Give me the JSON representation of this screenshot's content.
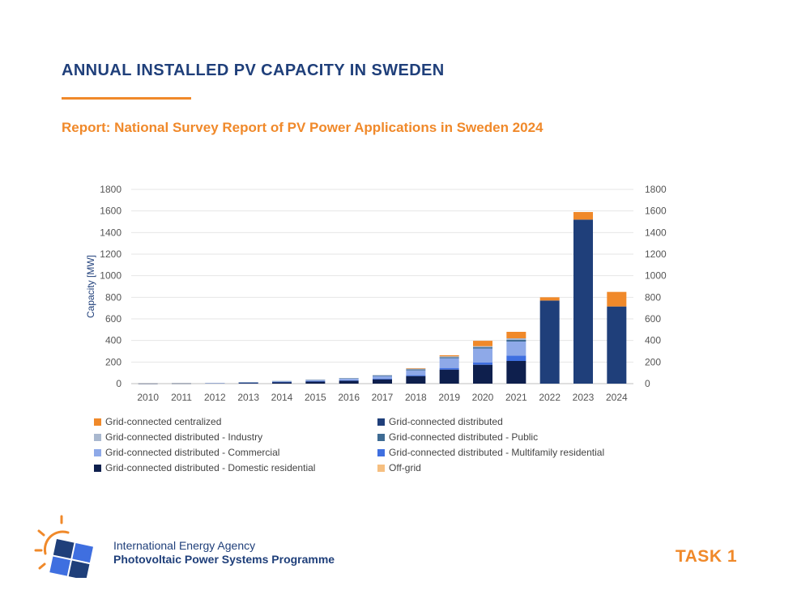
{
  "header": {
    "title": "ANNUAL INSTALLED PV CAPACITY IN SWEDEN",
    "subtitle": "Report: National Survey Report of PV Power Applications in Sweden 2024"
  },
  "footer": {
    "org_line1": "International Energy Agency",
    "org_line2": "Photovoltaic Power Systems Programme",
    "task": "TASK 1"
  },
  "colors": {
    "navy": "#1f3f7a",
    "orange": "#f0892a"
  },
  "chart_data": {
    "type": "bar",
    "stacked": true,
    "title": "",
    "xlabel": "",
    "ylabel": "Capacity [MW]",
    "ylim": [
      0,
      1800
    ],
    "yticks": [
      0,
      200,
      400,
      600,
      800,
      1000,
      1200,
      1400,
      1600,
      1800
    ],
    "right_axis": true,
    "grid": true,
    "legend_position": "bottom",
    "categories": [
      "2010",
      "2011",
      "2012",
      "2013",
      "2014",
      "2015",
      "2016",
      "2017",
      "2018",
      "2019",
      "2020",
      "2021",
      "2022",
      "2023",
      "2024"
    ],
    "series": [
      {
        "name": "Grid-connected distributed - Domestic residential",
        "color": "#0e1f4d",
        "values": [
          1,
          2,
          4,
          8,
          14,
          20,
          27,
          40,
          70,
          130,
          175,
          210,
          0,
          0,
          0
        ]
      },
      {
        "name": "Grid-connected distributed - Multifamily residential",
        "color": "#3f6fe0",
        "values": [
          0,
          0,
          0,
          1,
          2,
          3,
          4,
          5,
          8,
          15,
          20,
          50,
          0,
          0,
          0
        ]
      },
      {
        "name": "Grid-connected distributed - Commercial",
        "color": "#8ea9e8",
        "values": [
          0,
          0,
          1,
          3,
          6,
          10,
          15,
          25,
          45,
          90,
          130,
          130,
          0,
          0,
          0
        ]
      },
      {
        "name": "Grid-connected distributed - Public",
        "color": "#3e6b93",
        "values": [
          0,
          0,
          0,
          1,
          2,
          3,
          4,
          5,
          8,
          10,
          12,
          15,
          0,
          0,
          0
        ]
      },
      {
        "name": "Grid-connected distributed - Industry",
        "color": "#a9b8cf",
        "values": [
          0,
          0,
          0,
          1,
          1,
          2,
          2,
          5,
          7,
          8,
          10,
          15,
          0,
          0,
          0
        ]
      },
      {
        "name": "Grid-connected distributed",
        "color": "#1f3f7a",
        "values": [
          0,
          0,
          0,
          0,
          0,
          0,
          0,
          0,
          0,
          0,
          0,
          0,
          770,
          1520,
          715
        ]
      },
      {
        "name": "Off-grid",
        "color": "#f6bf80",
        "values": [
          0,
          0,
          0,
          0,
          0,
          0,
          0,
          0,
          0,
          0,
          0,
          0,
          0,
          0,
          0
        ]
      },
      {
        "name": "Grid-connected centralized",
        "color": "#f0892a",
        "values": [
          0,
          0,
          0,
          0,
          0,
          0,
          0,
          0,
          5,
          10,
          50,
          60,
          30,
          70,
          135
        ]
      }
    ],
    "legend_order": [
      "Grid-connected centralized",
      "Grid-connected distributed",
      "Grid-connected distributed - Industry",
      "Grid-connected distributed - Public",
      "Grid-connected distributed - Commercial",
      "Grid-connected distributed - Multifamily residential",
      "Grid-connected distributed - Domestic residential",
      "Off-grid"
    ]
  }
}
